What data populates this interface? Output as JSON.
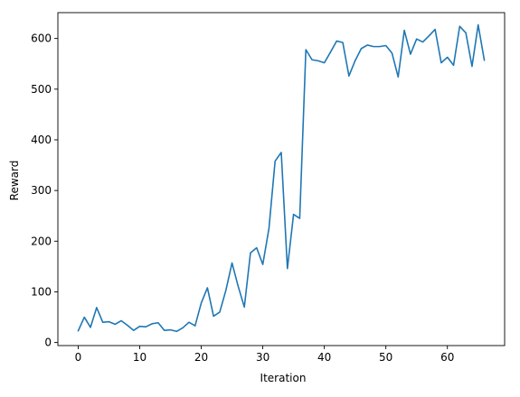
{
  "chart_data": {
    "type": "line",
    "title": "",
    "xlabel": "Iteration",
    "ylabel": "Reward",
    "xlim": [
      -3.3,
      69.3
    ],
    "ylim": [
      -6,
      651
    ],
    "x_ticks": [
      0,
      10,
      20,
      30,
      40,
      50,
      60
    ],
    "y_ticks": [
      0,
      100,
      200,
      300,
      400,
      500,
      600
    ],
    "grid": false,
    "legend": "none",
    "series": [
      {
        "color": "#1f77b4",
        "x": [
          0,
          1,
          2,
          3,
          4,
          5,
          6,
          7,
          8,
          9,
          10,
          11,
          12,
          13,
          14,
          15,
          16,
          17,
          18,
          19,
          20,
          21,
          22,
          23,
          24,
          25,
          26,
          27,
          28,
          29,
          30,
          31,
          32,
          33,
          34,
          35,
          36,
          37,
          38,
          39,
          40,
          41,
          42,
          43,
          44,
          45,
          46,
          47,
          48,
          49,
          50,
          51,
          52,
          53,
          54,
          55,
          56,
          57,
          58,
          59,
          60,
          61,
          62,
          63,
          64,
          65,
          66
        ],
        "y": [
          23,
          50,
          30,
          69,
          40,
          41,
          36,
          43,
          34,
          24,
          32,
          31,
          37,
          39,
          24,
          25,
          22,
          29,
          40,
          33,
          78,
          108,
          52,
          60,
          103,
          157,
          111,
          70,
          177,
          187,
          154,
          225,
          358,
          375,
          146,
          253,
          245,
          578,
          558,
          556,
          552,
          573,
          595,
          592,
          526,
          556,
          580,
          587,
          584,
          584,
          586,
          571,
          524,
          616,
          569,
          599,
          593,
          605,
          618,
          552,
          563,
          547,
          624,
          611,
          545,
          627,
          557
        ]
      }
    ]
  }
}
